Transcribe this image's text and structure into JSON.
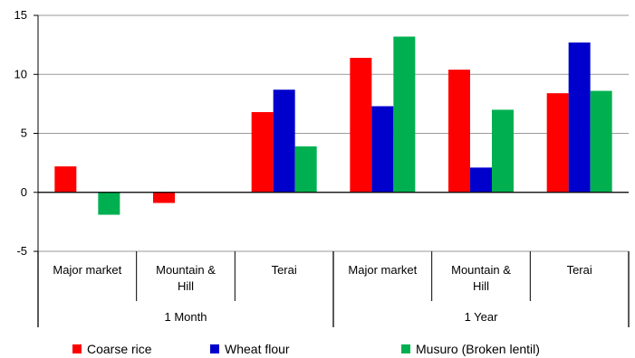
{
  "chart_data": {
    "type": "bar",
    "title": "",
    "xlabel": "",
    "ylabel": "",
    "ylim": [
      -5,
      15
    ],
    "yticks": [
      -5,
      0,
      5,
      10,
      15
    ],
    "grid": true,
    "legend_position": "bottom",
    "groups": [
      {
        "label": "1 Month",
        "categories": [
          "Major  market",
          "Mountain & Hill",
          "Terai"
        ]
      },
      {
        "label": "1 Year",
        "categories": [
          "Major market",
          "Mountain & Hill",
          "Terai"
        ]
      }
    ],
    "categories": [
      "Major  market",
      "Mountain & Hill",
      "Terai",
      "Major market",
      "Mountain & Hill",
      "Terai"
    ],
    "series": [
      {
        "name": "Coarse rice",
        "color": "#ff0000",
        "values": [
          2.2,
          -0.9,
          6.8,
          11.4,
          10.4,
          8.4
        ]
      },
      {
        "name": "Wheat flour",
        "color": "#0000cc",
        "values": [
          0,
          0,
          8.7,
          7.3,
          2.1,
          12.7
        ]
      },
      {
        "name": "Musuro (Broken lentil)",
        "color": "#00b050",
        "values": [
          -1.9,
          0,
          3.9,
          13.2,
          7.0,
          8.6
        ]
      }
    ]
  }
}
